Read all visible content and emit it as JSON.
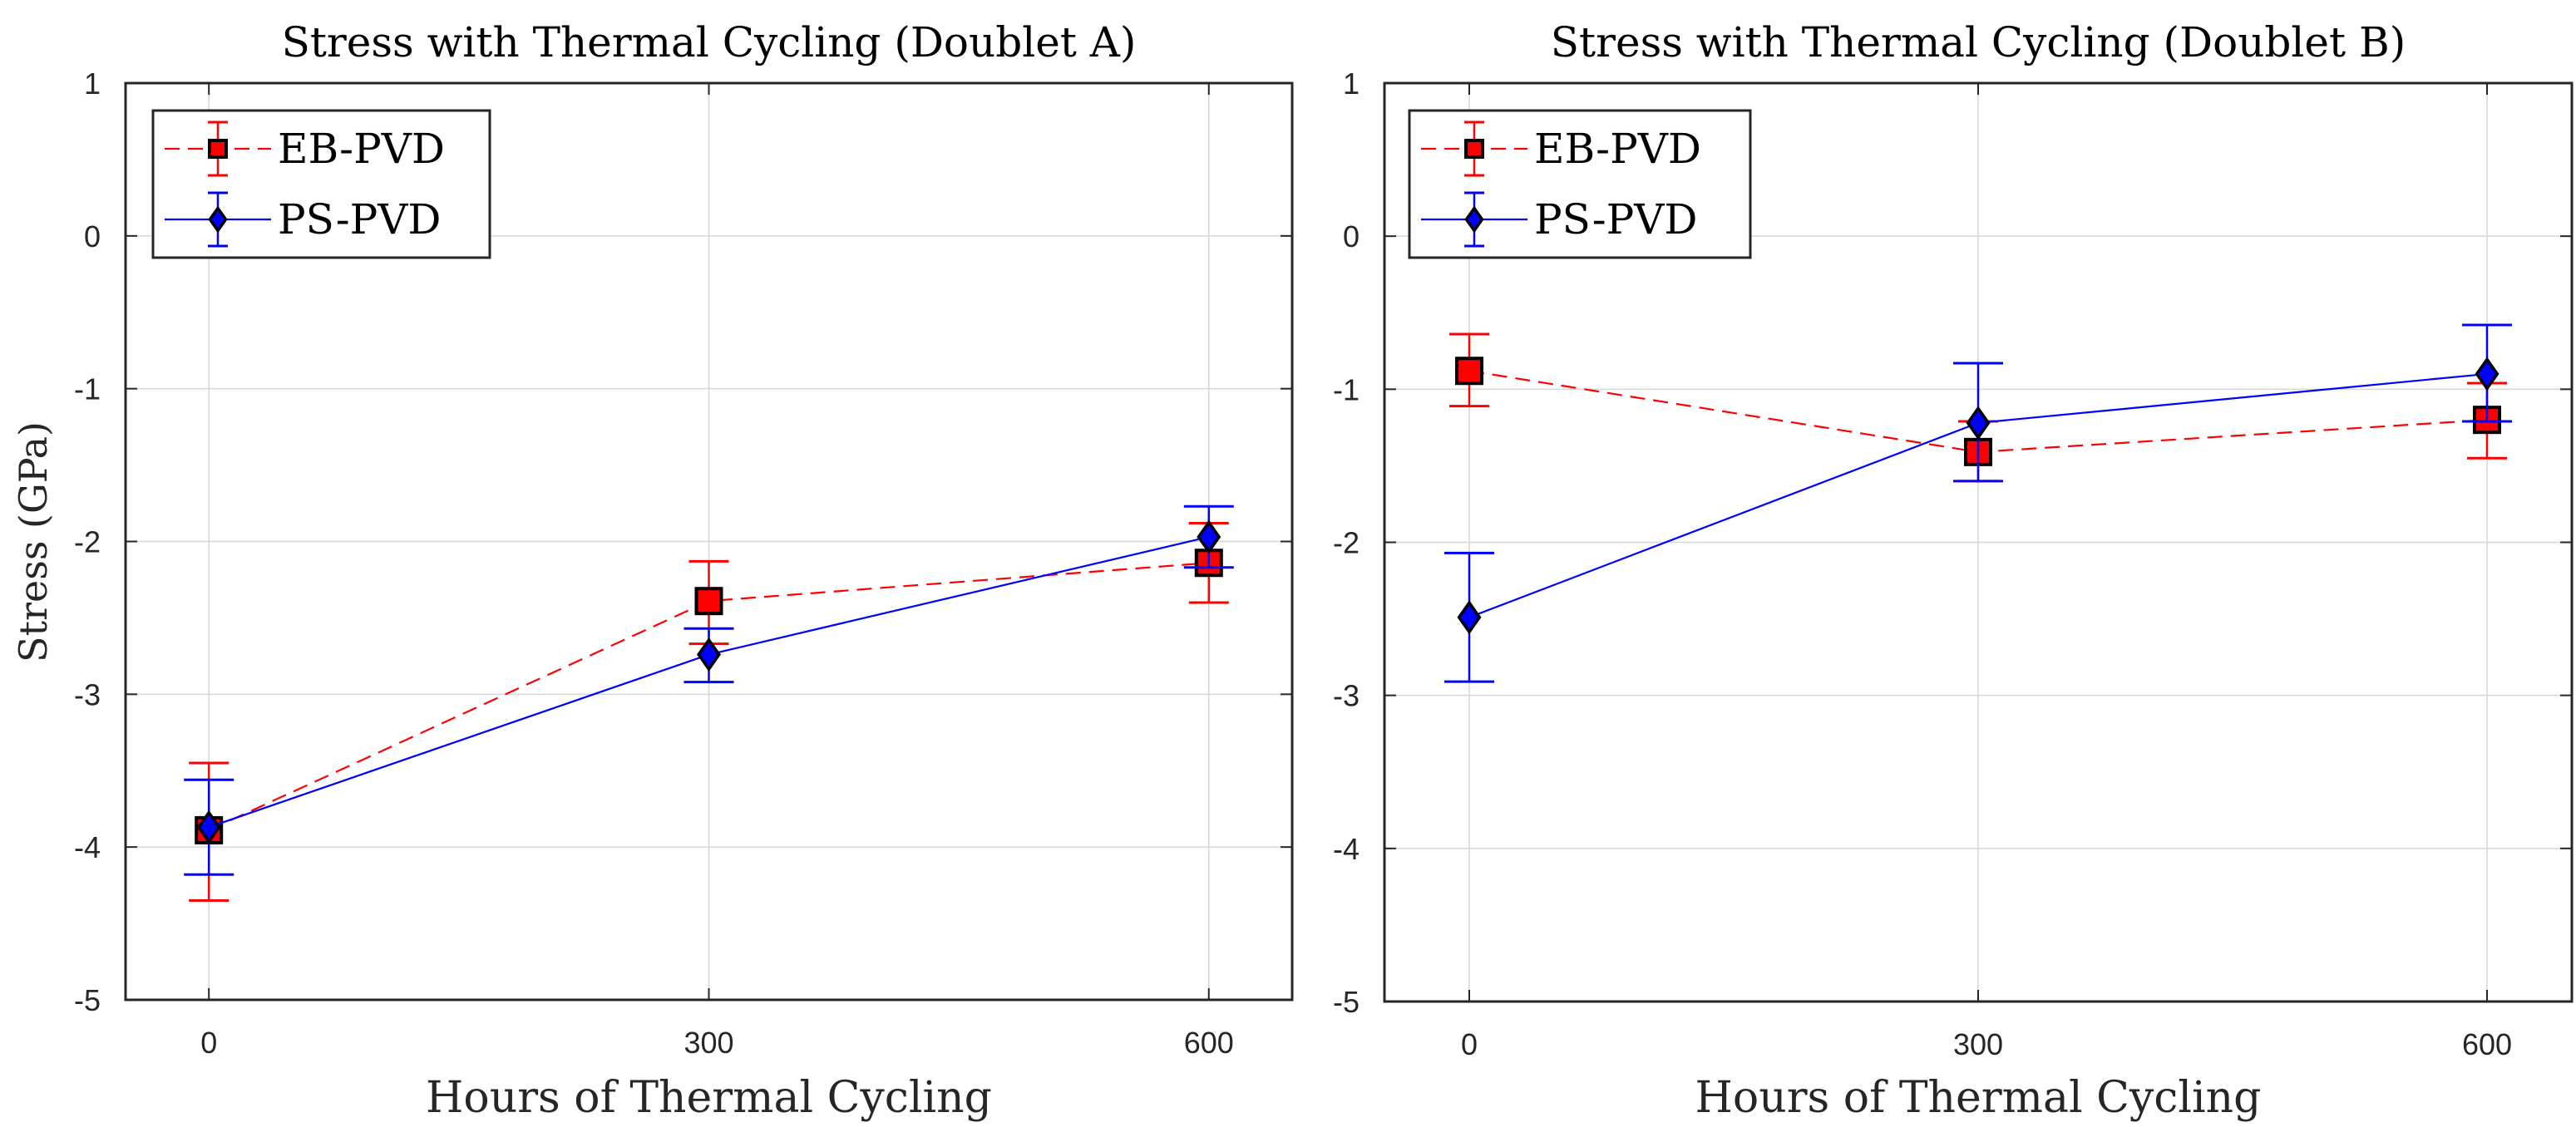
{
  "figure": {
    "ylabel": "Stress (GPa)"
  },
  "chart_data": [
    {
      "type": "line",
      "subtype": "errorbar",
      "title": "Stress with Thermal Cycling (Doublet A)",
      "xlabel": "Hours of Thermal Cycling",
      "ylabel": "Stress (GPa)",
      "xlim": [
        -50,
        650
      ],
      "ylim": [
        -5,
        1
      ],
      "xticks": [
        0,
        300,
        600
      ],
      "xtick_labels": [
        "0",
        "300",
        "600"
      ],
      "yticks": [
        1,
        0,
        -1,
        -2,
        -3,
        -4,
        -5
      ],
      "ytick_labels": [
        "1",
        "0",
        "-1",
        "-2",
        "-3",
        "-4",
        "-5"
      ],
      "grid": true,
      "legend": {
        "placement": "top-left",
        "entries": [
          "EB-PVD",
          "PS-PVD"
        ]
      },
      "x": [
        0,
        300,
        600
      ],
      "series": [
        {
          "name": "EB-PVD",
          "color": "#ff0000",
          "line_style": "dashed",
          "marker": "square",
          "values": [
            -3.89,
            -2.39,
            -2.14
          ],
          "err_upper": [
            -3.45,
            -2.13,
            -1.88
          ],
          "err_lower": [
            -4.35,
            -2.67,
            -2.4
          ]
        },
        {
          "name": "PS-PVD",
          "color": "#0000ff",
          "line_style": "solid",
          "marker": "diamond",
          "values": [
            -3.87,
            -2.74,
            -1.97
          ],
          "err_upper": [
            -3.56,
            -2.57,
            -1.77
          ],
          "err_lower": [
            -4.18,
            -2.92,
            -2.17
          ]
        }
      ]
    },
    {
      "type": "line",
      "subtype": "errorbar",
      "title": "Stress with Thermal Cycling (Doublet B)",
      "xlabel": "Hours of Thermal Cycling",
      "ylabel": "",
      "xlim": [
        -50,
        650
      ],
      "ylim": [
        -5,
        1
      ],
      "xticks": [
        0,
        300,
        600
      ],
      "xtick_labels": [
        "0",
        "300",
        "600"
      ],
      "yticks": [
        1,
        0,
        -1,
        -2,
        -3,
        -4,
        -5
      ],
      "ytick_labels": [
        "1",
        "0",
        "-1",
        "-2",
        "-3",
        "-4",
        "-5"
      ],
      "grid": true,
      "legend": {
        "placement": "top-left",
        "entries": [
          "EB-PVD",
          "PS-PVD"
        ]
      },
      "x": [
        0,
        300,
        600
      ],
      "series": [
        {
          "name": "EB-PVD",
          "color": "#ff0000",
          "line_style": "dashed",
          "marker": "square",
          "values": [
            -0.88,
            -1.41,
            -1.2
          ],
          "err_upper": [
            -0.64,
            -1.21,
            -0.96
          ],
          "err_lower": [
            -1.11,
            -1.6,
            -1.45
          ]
        },
        {
          "name": "PS-PVD",
          "color": "#0000ff",
          "line_style": "solid",
          "marker": "diamond",
          "values": [
            -2.49,
            -1.22,
            -0.9
          ],
          "err_upper": [
            -2.07,
            -0.83,
            -0.58
          ],
          "err_lower": [
            -2.91,
            -1.6,
            -1.21
          ]
        }
      ]
    }
  ]
}
